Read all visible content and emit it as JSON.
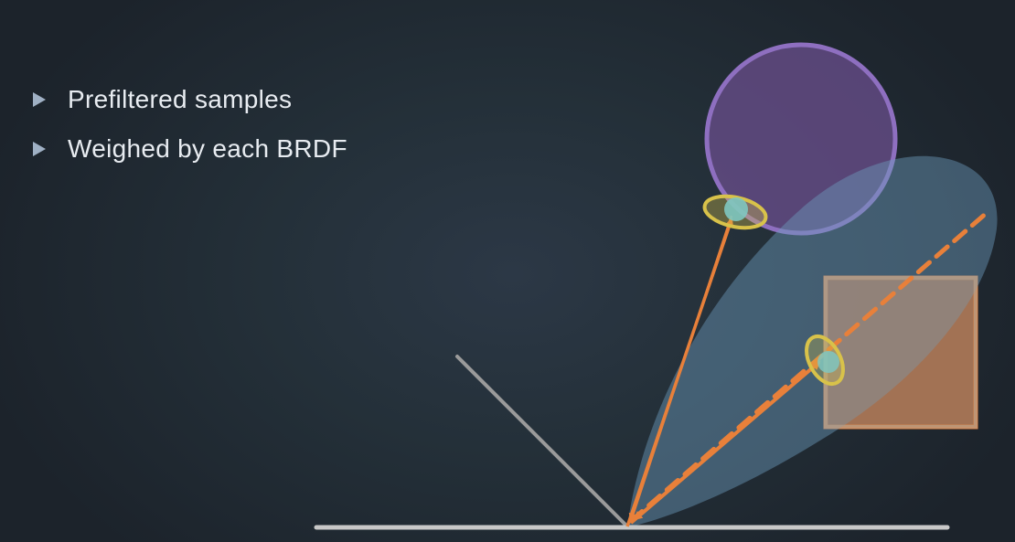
{
  "bullets": [
    {
      "text": "Prefiltered samples"
    },
    {
      "text": "Weighed by each BRDF"
    }
  ],
  "colors": {
    "background": "#232d37",
    "surface_line": "#c8c8c8",
    "mirror_line": "#9a9a9a",
    "ray_orange": "#e8803a",
    "lobe_blue": "#6d9cbd",
    "sphere_purple": "#7a5a9e",
    "box_fill": "#8a7a6e",
    "box_border": "#e8803a",
    "sample_ring": "#d8c24a",
    "sample_core": "#7fc6c0"
  }
}
